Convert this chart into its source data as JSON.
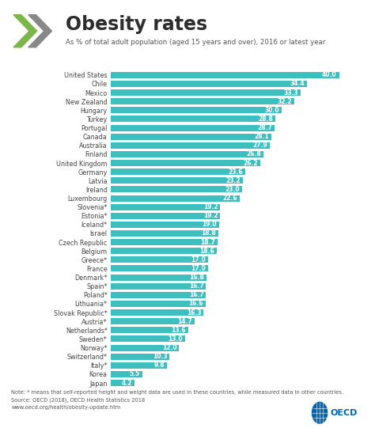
{
  "title": "Obesity rates",
  "subtitle": "As % of total adult population (aged 15 years and over), 2016 or latest year",
  "countries": [
    "United States",
    "Chile",
    "Mexico",
    "New Zealand",
    "Hungary",
    "Turkey",
    "Portugal",
    "Canada",
    "Australia",
    "Finland",
    "United Kingdom",
    "Germany",
    "Latvia",
    "Ireland",
    "Luxembourg",
    "Slovenia*",
    "Estonia*",
    "Iceland*",
    "Israel",
    "Czech Republic",
    "Belgium",
    "Greece*",
    "France",
    "Denmark*",
    "Spain*",
    "Poland*",
    "Lithuania*",
    "Slovak Republic*",
    "Austria*",
    "Netherlands*",
    "Sweden*",
    "Norway*",
    "Switzerland*",
    "Italy*",
    "Korea",
    "Japan"
  ],
  "values": [
    40.0,
    34.4,
    33.3,
    32.2,
    30.0,
    28.8,
    28.7,
    28.1,
    27.9,
    26.8,
    26.2,
    23.6,
    23.2,
    23.0,
    22.6,
    19.2,
    19.2,
    19.0,
    18.8,
    18.7,
    18.6,
    17.0,
    17.0,
    16.8,
    16.7,
    16.7,
    16.6,
    16.3,
    14.7,
    13.6,
    13.0,
    12.0,
    10.3,
    9.8,
    5.5,
    4.2
  ],
  "bar_color": "#3dbfbf",
  "value_color": "#ffffff",
  "title_color": "#2d2d2d",
  "subtitle_color": "#555555",
  "background_color": "#ffffff",
  "note_text": "Note: * means that self-reported height and weight data are used in these countries, while measured data in other countries.\nSource: OECD (2018), OECD Health Statistics 2018\nwww.oecd.org/health/obesity-update.htm",
  "xlim": [
    0,
    44
  ],
  "bar_height": 0.72,
  "title_fontsize": 17,
  "subtitle_fontsize": 6.2,
  "label_fontsize": 5.8,
  "value_fontsize": 5.5,
  "note_fontsize": 4.8,
  "chevron_green": "#7ab648",
  "chevron_gray": "#888888",
  "separator_color": "#bbbbbb",
  "oecd_blue": "#0066b3"
}
